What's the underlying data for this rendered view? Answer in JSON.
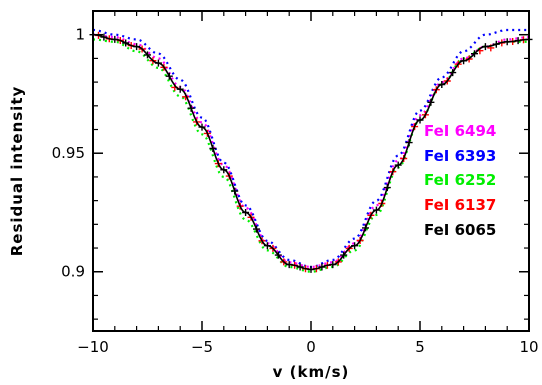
{
  "chart_data": {
    "type": "line",
    "xlabel": "v (km/s)",
    "ylabel": "Residual intensity",
    "xlim": [
      -10,
      10
    ],
    "ylim": [
      0.875,
      1.01
    ],
    "x_ticks": [
      -10,
      -5,
      0,
      5,
      10
    ],
    "x_tick_labels": [
      "−10",
      "−5",
      "0",
      "5",
      "10"
    ],
    "y_ticks": [
      0.9,
      0.95,
      1.0
    ],
    "y_tick_labels": [
      "0.9",
      "0.95",
      "1"
    ],
    "grid": false,
    "legend_position": "right",
    "series": [
      {
        "name": "FeI 6494",
        "color": "#ff00ff",
        "style": "dotted",
        "x": [
          -10,
          -9,
          -8,
          -7,
          -6,
          -5,
          -4,
          -3,
          -2,
          -1,
          0,
          1,
          2,
          3,
          4,
          5,
          6,
          7,
          8,
          9,
          10
        ],
        "y": [
          1.0,
          0.999,
          0.996,
          0.99,
          0.978,
          0.963,
          0.945,
          0.927,
          0.912,
          0.904,
          0.902,
          0.904,
          0.912,
          0.928,
          0.947,
          0.966,
          0.98,
          0.99,
          0.995,
          0.998,
          0.999
        ]
      },
      {
        "name": "FeI 6393",
        "color": "#0000ff",
        "style": "dotted",
        "x": [
          -10,
          -9,
          -8,
          -7,
          -6,
          -5,
          -4,
          -3,
          -2,
          -1,
          0,
          1,
          2,
          3,
          4,
          5,
          6,
          7,
          8,
          9,
          10
        ],
        "y": [
          1.002,
          1.0,
          0.998,
          0.992,
          0.981,
          0.965,
          0.946,
          0.928,
          0.913,
          0.905,
          0.902,
          0.905,
          0.914,
          0.93,
          0.949,
          0.968,
          0.982,
          0.993,
          1.0,
          1.002,
          1.002
        ]
      },
      {
        "name": "FeI 6252",
        "color": "#00ee00",
        "style": "dotted",
        "x": [
          -10,
          -9,
          -8,
          -7,
          -6,
          -5,
          -4,
          -3,
          -2,
          -1,
          0,
          1,
          2,
          3,
          4,
          5,
          6,
          7,
          8,
          9,
          10
        ],
        "y": [
          0.998,
          0.997,
          0.993,
          0.986,
          0.974,
          0.958,
          0.94,
          0.922,
          0.909,
          0.902,
          0.9,
          0.902,
          0.909,
          0.924,
          0.944,
          0.964,
          0.979,
          0.99,
          0.995,
          0.997,
          0.997
        ]
      },
      {
        "name": "FeI 6137",
        "color": "#ff0000",
        "style": "plus",
        "x": [
          -10,
          -9,
          -8,
          -7,
          -6,
          -5,
          -4,
          -3,
          -2,
          -1,
          0,
          1,
          2,
          3,
          4,
          5,
          6,
          7,
          8,
          9,
          10
        ],
        "y": [
          1.0,
          0.998,
          0.995,
          0.988,
          0.976,
          0.961,
          0.943,
          0.925,
          0.911,
          0.903,
          0.901,
          0.903,
          0.911,
          0.926,
          0.945,
          0.964,
          0.979,
          0.989,
          0.994,
          0.997,
          0.998
        ]
      },
      {
        "name": "FeI 6065",
        "color": "#000000",
        "style": "plus-line",
        "x": [
          -10,
          -9,
          -8,
          -7,
          -6,
          -5,
          -4,
          -3,
          -2,
          -1,
          0,
          1,
          2,
          3,
          4,
          5,
          6,
          7,
          8,
          9,
          10
        ],
        "y": [
          1.0,
          0.998,
          0.995,
          0.988,
          0.977,
          0.961,
          0.943,
          0.925,
          0.911,
          0.903,
          0.901,
          0.903,
          0.911,
          0.926,
          0.945,
          0.964,
          0.979,
          0.989,
          0.995,
          0.997,
          0.998
        ]
      }
    ]
  }
}
